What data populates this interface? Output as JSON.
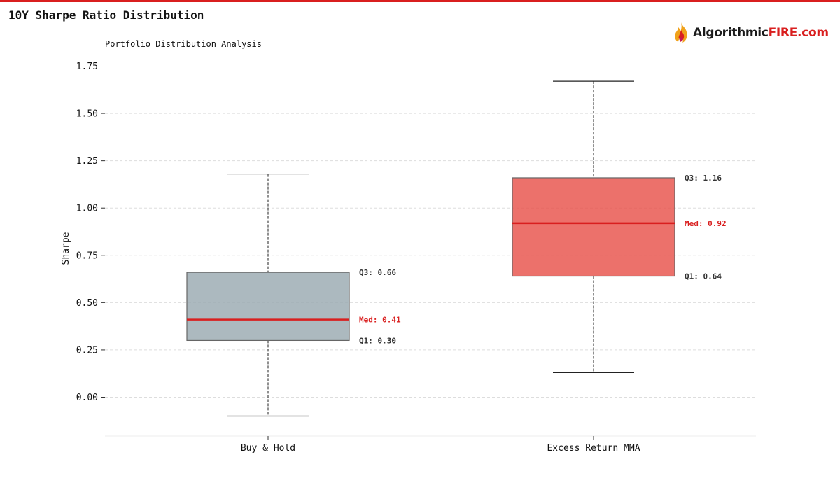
{
  "page": {
    "title": "10Y Sharpe Ratio Distribution",
    "logo_text_main": "Algorithmic",
    "logo_text_accent": "FIRE.com"
  },
  "chart_data": {
    "type": "box",
    "subtitle": "Portfolio Distribution Analysis",
    "ylabel": "Sharpe",
    "ylim": [
      -0.21,
      1.8
    ],
    "yticks": [
      "0.00",
      "0.25",
      "0.50",
      "0.75",
      "1.00",
      "1.25",
      "1.50",
      "1.75"
    ],
    "grid": true,
    "categories": [
      "Buy & Hold",
      "Excess Return MMA"
    ],
    "series": [
      {
        "category": "Buy & Hold",
        "whisker_low": -0.1,
        "q1": 0.3,
        "median": 0.41,
        "q3": 0.66,
        "whisker_high": 1.18,
        "color": "#9aa9b1",
        "label_q3": "Q3: 0.66",
        "label_median": "Med: 0.41",
        "label_q1": "Q1: 0.30"
      },
      {
        "category": "Excess Return MMA",
        "whisker_low": 0.13,
        "q1": 0.64,
        "median": 0.92,
        "q3": 1.16,
        "whisker_high": 1.67,
        "color": "#e8524a",
        "label_q3": "Q3: 1.16",
        "label_median": "Med: 0.92",
        "label_q1": "Q1: 0.64"
      }
    ],
    "colors": {
      "median_line": "#d91f1f",
      "box_edge": "#666666",
      "whisker": "#222222",
      "grid": "#dddddd"
    }
  }
}
